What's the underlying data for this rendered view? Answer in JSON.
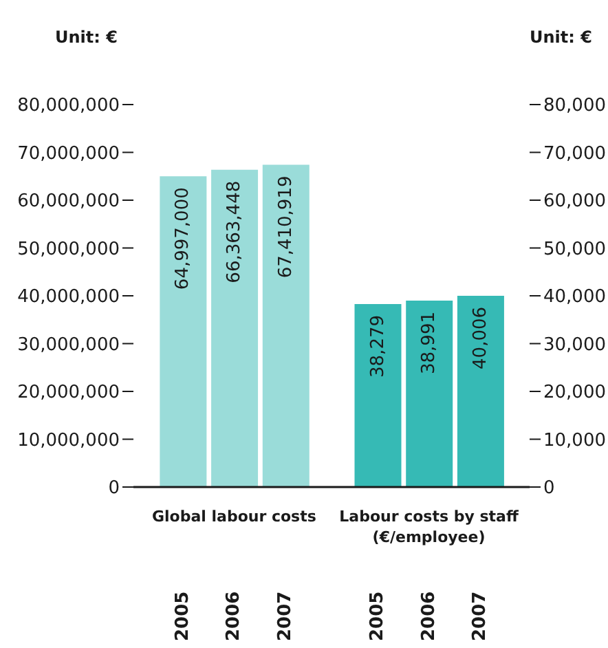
{
  "chart_data": {
    "type": "bar",
    "categories": [
      "2005",
      "2006",
      "2007",
      "2005",
      "2006",
      "2007"
    ],
    "series": [
      {
        "name": "Global labour costs",
        "color": "#9adcd9",
        "values": [
          64997000,
          66363448,
          67410919,
          null,
          null,
          null
        ],
        "value_labels": [
          "64,997,000",
          "66,363,448",
          "67,410,919",
          null,
          null,
          null
        ]
      },
      {
        "name": "Labour costs by staff (€/employee)",
        "color": "#36bab5",
        "axis": "y2",
        "values": [
          null,
          null,
          null,
          38279,
          38991,
          40006
        ],
        "value_labels": [
          null,
          null,
          null,
          "38,279",
          "38,991",
          "40,006"
        ]
      }
    ],
    "ylim": [
      0,
      80000000
    ],
    "yticks": [
      {
        "value": 0,
        "label": "0"
      },
      {
        "value": 10000000,
        "label": "10,000,000"
      },
      {
        "value": 20000000,
        "label": "20,000,000"
      },
      {
        "value": 30000000,
        "label": "30,000,000"
      },
      {
        "value": 40000000,
        "label": "40,000,000"
      },
      {
        "value": 50000000,
        "label": "50,000,000"
      },
      {
        "value": 60000000,
        "label": "60,000,000"
      },
      {
        "value": 70000000,
        "label": "70,000,000"
      },
      {
        "value": 80000000,
        "label": "80,000,000"
      }
    ],
    "y2lim": [
      0,
      80000
    ],
    "y2ticks": [
      {
        "value": 0,
        "label": "0"
      },
      {
        "value": 10000,
        "label": "10,000"
      },
      {
        "value": 20000,
        "label": "20,000"
      },
      {
        "value": 30000,
        "label": "30,000"
      },
      {
        "value": 40000,
        "label": "40,000"
      },
      {
        "value": 50000,
        "label": "50,000"
      },
      {
        "value": 60000,
        "label": "60,000"
      },
      {
        "value": 70000,
        "label": "70,000"
      },
      {
        "value": 80000,
        "label": "80,000"
      }
    ],
    "annotations": [
      "Unit: €",
      "Unit: €"
    ],
    "legend": false,
    "grid": false
  }
}
